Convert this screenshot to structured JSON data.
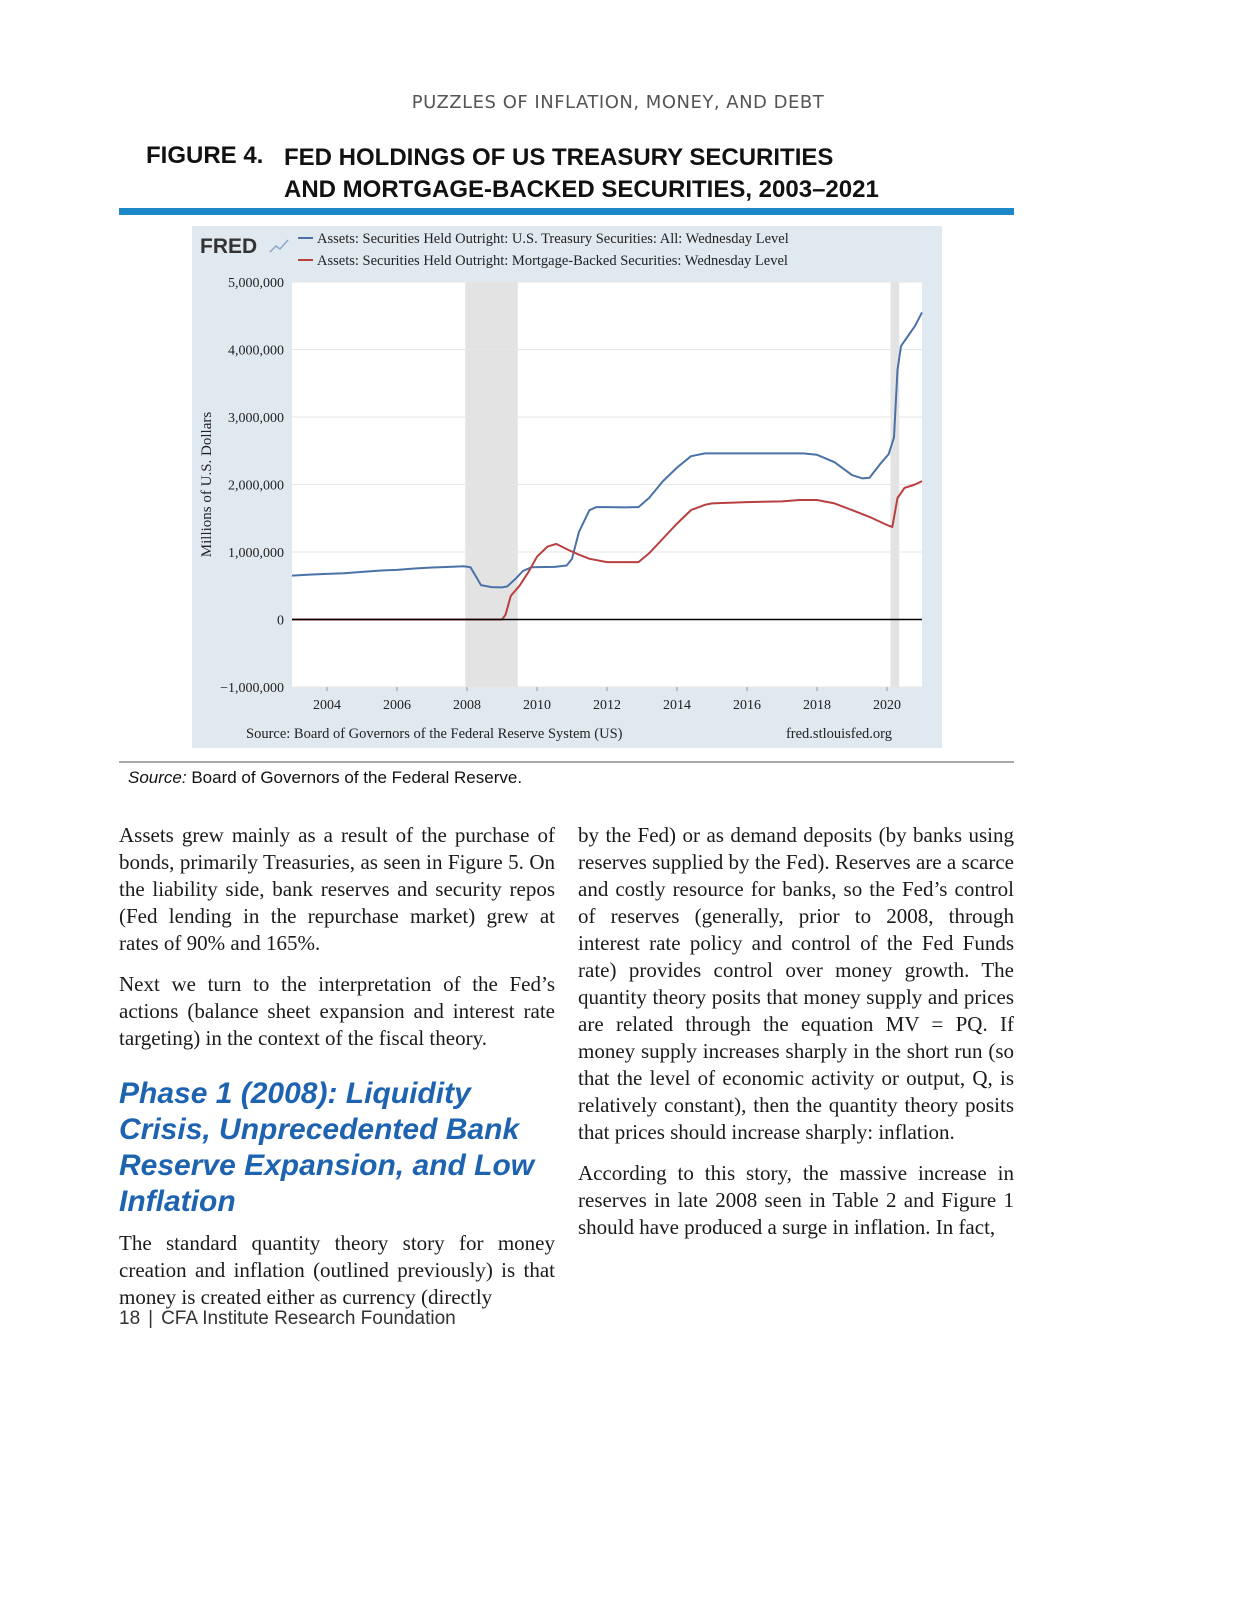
{
  "running_head": "PUZZLES OF INFLATION, MONEY, AND DEBT",
  "figure": {
    "label": "FIGURE 4.",
    "title_line1": "FED HOLDINGS OF US TREASURY SECURITIES",
    "title_line2": "AND MORTGAGE-BACKED SECURITIES, 2003–2021",
    "source_prefix": "Source:",
    "source_text": "Board of Governors of the Federal Reserve."
  },
  "chart_data": {
    "type": "line",
    "logo": "FRED",
    "ylabel": "Millions of U.S. Dollars",
    "ylim": [
      -1000000,
      5000000
    ],
    "xlim": [
      2003.0,
      2021.0
    ],
    "yticks": [
      5000000,
      4000000,
      3000000,
      2000000,
      1000000,
      0,
      -1000000
    ],
    "ytick_labels": [
      "5,000,000",
      "4,000,000",
      "3,000,000",
      "2,000,000",
      "1,000,000",
      "0",
      "−1,000,000"
    ],
    "xticks": [
      2004,
      2006,
      2008,
      2010,
      2012,
      2014,
      2016,
      2018,
      2020
    ],
    "xtick_labels": [
      "2004",
      "2006",
      "2008",
      "2010",
      "2012",
      "2014",
      "2016",
      "2018",
      "2020"
    ],
    "grid": true,
    "source_note": "Source: Board of Governors of the Federal Reserve System (US)",
    "site": "fred.stlouisfed.org",
    "recessions": [
      [
        2007.95,
        2009.45
      ],
      [
        2020.1,
        2020.35
      ]
    ],
    "series": [
      {
        "name": "Assets: Securities Held Outright: U.S. Treasury Securities: All: Wednesday Level",
        "color": "#4a72a6",
        "points": [
          [
            2003.0,
            650000
          ],
          [
            2003.5,
            665000
          ],
          [
            2004.0,
            675000
          ],
          [
            2004.5,
            685000
          ],
          [
            2005.0,
            705000
          ],
          [
            2005.5,
            725000
          ],
          [
            2006.0,
            735000
          ],
          [
            2006.5,
            755000
          ],
          [
            2007.0,
            770000
          ],
          [
            2007.5,
            780000
          ],
          [
            2007.9,
            790000
          ],
          [
            2008.1,
            775000
          ],
          [
            2008.25,
            640000
          ],
          [
            2008.4,
            510000
          ],
          [
            2008.7,
            480000
          ],
          [
            2009.0,
            475000
          ],
          [
            2009.15,
            490000
          ],
          [
            2009.4,
            610000
          ],
          [
            2009.6,
            720000
          ],
          [
            2009.85,
            775000
          ],
          [
            2010.0,
            777000
          ],
          [
            2010.5,
            780000
          ],
          [
            2010.85,
            800000
          ],
          [
            2011.0,
            900000
          ],
          [
            2011.2,
            1300000
          ],
          [
            2011.5,
            1620000
          ],
          [
            2011.7,
            1665000
          ],
          [
            2012.0,
            1665000
          ],
          [
            2012.5,
            1660000
          ],
          [
            2012.9,
            1665000
          ],
          [
            2013.2,
            1800000
          ],
          [
            2013.6,
            2050000
          ],
          [
            2014.0,
            2250000
          ],
          [
            2014.4,
            2420000
          ],
          [
            2014.8,
            2460000
          ],
          [
            2015.0,
            2460000
          ],
          [
            2016.0,
            2460000
          ],
          [
            2017.0,
            2460000
          ],
          [
            2017.6,
            2460000
          ],
          [
            2018.0,
            2440000
          ],
          [
            2018.5,
            2330000
          ],
          [
            2019.0,
            2140000
          ],
          [
            2019.3,
            2090000
          ],
          [
            2019.5,
            2100000
          ],
          [
            2019.8,
            2300000
          ],
          [
            2020.05,
            2450000
          ],
          [
            2020.2,
            2700000
          ],
          [
            2020.3,
            3700000
          ],
          [
            2020.4,
            4050000
          ],
          [
            2020.6,
            4200000
          ],
          [
            2020.8,
            4350000
          ],
          [
            2021.0,
            4550000
          ]
        ]
      },
      {
        "name": "Assets: Securities Held Outright: Mortgage-Backed Securities: Wednesday Level",
        "color": "#b8403f",
        "points": [
          [
            2003.0,
            0
          ],
          [
            2009.0,
            0
          ],
          [
            2009.1,
            70000
          ],
          [
            2009.25,
            350000
          ],
          [
            2009.5,
            500000
          ],
          [
            2009.75,
            700000
          ],
          [
            2010.0,
            930000
          ],
          [
            2010.3,
            1080000
          ],
          [
            2010.55,
            1120000
          ],
          [
            2010.9,
            1030000
          ],
          [
            2011.2,
            960000
          ],
          [
            2011.5,
            900000
          ],
          [
            2012.0,
            850000
          ],
          [
            2012.5,
            850000
          ],
          [
            2012.9,
            850000
          ],
          [
            2013.2,
            980000
          ],
          [
            2013.6,
            1200000
          ],
          [
            2014.0,
            1420000
          ],
          [
            2014.4,
            1620000
          ],
          [
            2014.8,
            1700000
          ],
          [
            2015.0,
            1720000
          ],
          [
            2016.0,
            1740000
          ],
          [
            2017.0,
            1750000
          ],
          [
            2017.5,
            1770000
          ],
          [
            2018.0,
            1770000
          ],
          [
            2018.5,
            1720000
          ],
          [
            2019.0,
            1620000
          ],
          [
            2019.5,
            1520000
          ],
          [
            2020.0,
            1400000
          ],
          [
            2020.15,
            1370000
          ],
          [
            2020.3,
            1800000
          ],
          [
            2020.5,
            1950000
          ],
          [
            2020.8,
            2000000
          ],
          [
            2021.0,
            2050000
          ]
        ]
      },
      {
        "name": "",
        "color": "#000000",
        "points": [
          [
            2003.0,
            0
          ],
          [
            2021.0,
            0
          ]
        ]
      }
    ]
  },
  "body": {
    "left_p1": "Assets grew mainly as a result of the purchase of bonds, primarily Treasuries, as seen in Figure 5. On the liability side, bank reserves and security repos (Fed lending in the repurchase market) grew at rates of 90% and 165%.",
    "left_p2": "Next we turn to the interpretation of the Fed’s actions (balance sheet expansion and interest rate targeting) in the context of the fiscal theory.",
    "heading": "Phase 1 (2008): Liquidity Crisis, Unprecedented Bank Reserve Expansion, and Low Inflation",
    "left_p3": "The standard quantity theory story for money creation and inflation (outlined previously) is that money is created either as currency (directly",
    "right_p1": "by the Fed) or as demand deposits (by banks using reserves supplied by the Fed). Reserves are a scarce and costly resource for banks, so the Fed’s control of reserves (generally, prior to 2008, through interest rate policy and control of the Fed Funds rate) provides control over money growth. The quantity theory posits that money supply and prices are related through the equation MV = PQ. If money supply increases sharply in the short run (so that the level of economic activity or output, Q, is relatively constant), then the quantity theory posits that prices should increase sharply: inflation.",
    "right_p2": "According to this story, the massive increase in reserves in late 2008 seen in Table 2 and Figure 1 should have produced a surge in inflation. In fact,"
  },
  "footer": {
    "page_number": "18",
    "separator": "|",
    "publisher": "CFA Institute Research Foundation"
  }
}
